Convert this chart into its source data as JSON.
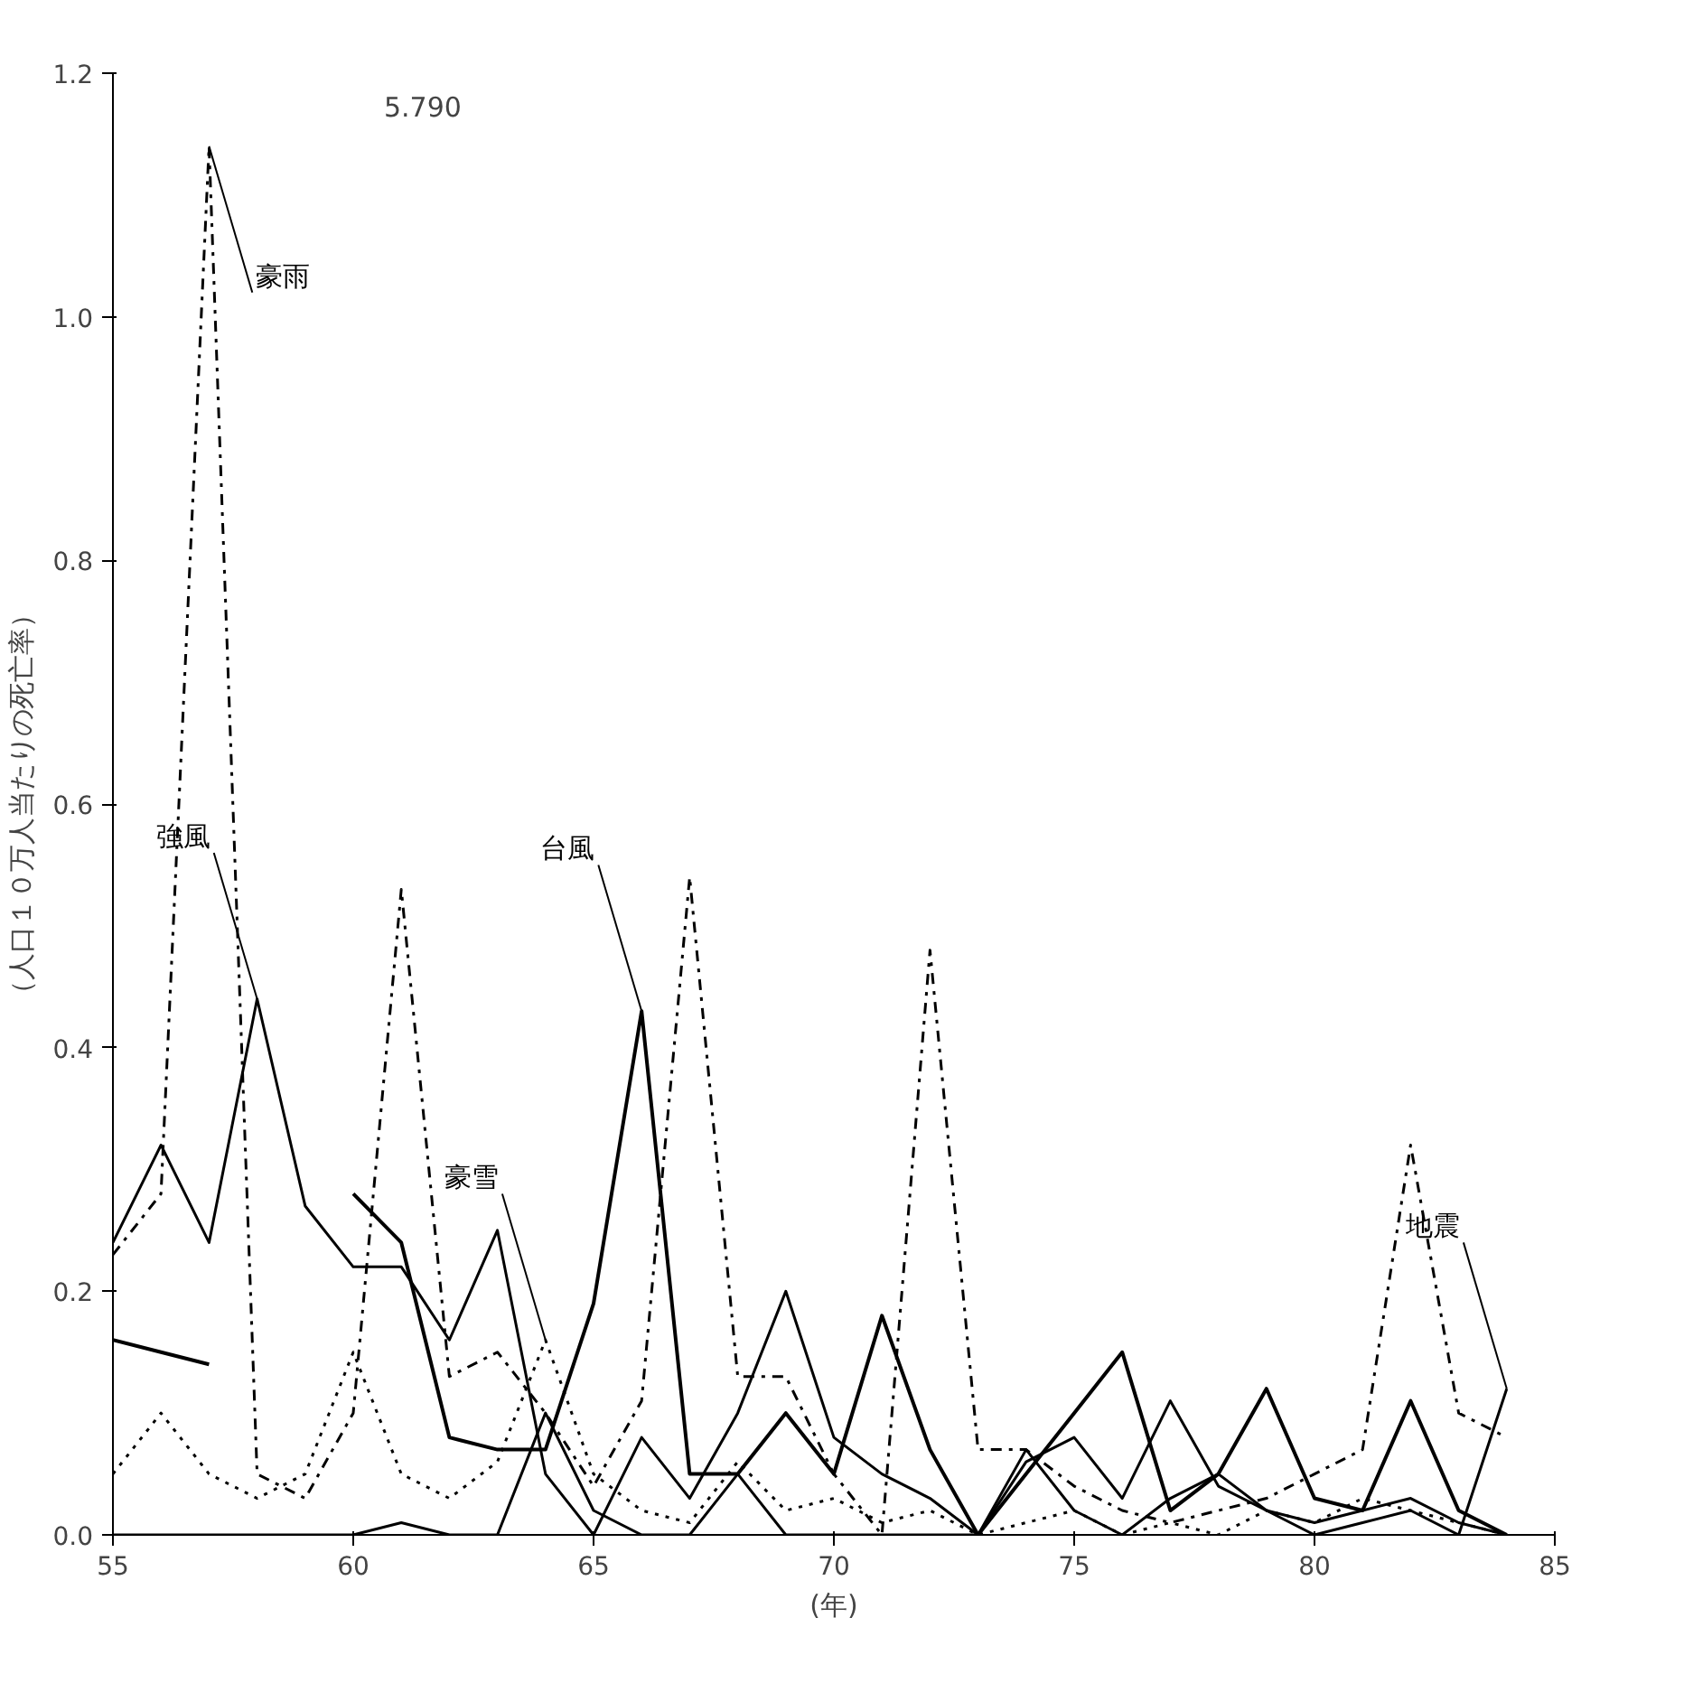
{
  "chart_data": {
    "type": "line",
    "xlabel": "(年)",
    "ylabel": "（人口１０万人当たりの死亡率）",
    "x": [
      55,
      56,
      57,
      58,
      59,
      60,
      61,
      62,
      63,
      64,
      65,
      66,
      67,
      68,
      69,
      70,
      71,
      72,
      73,
      74,
      75,
      76,
      77,
      78,
      79,
      80,
      81,
      82,
      83,
      84
    ],
    "series": [
      {
        "name": "台風",
        "color": "#000000",
        "line_style": "solid",
        "values": [
          0.16,
          0.15,
          0.14,
          null,
          null,
          0.28,
          0.24,
          0.08,
          0.07,
          0.07,
          0.19,
          0.43,
          0.05,
          0.05,
          0.1,
          0.05,
          0.18,
          0.07,
          0.0,
          0.05,
          0.1,
          0.15,
          0.02,
          0.05,
          0.12,
          0.03,
          0.02,
          0.11,
          0.02,
          0.0
        ]
      },
      {
        "name": "豪雨",
        "color": "#000000",
        "line_style": "dashed",
        "values": [
          0.23,
          0.28,
          1.14,
          0.05,
          0.03,
          0.1,
          0.53,
          0.13,
          0.15,
          0.1,
          0.04,
          0.11,
          0.54,
          0.13,
          0.13,
          0.05,
          0.0,
          0.48,
          0.07,
          0.07,
          0.04,
          0.02,
          0.01,
          0.02,
          0.03,
          0.05,
          0.07,
          0.32,
          0.1,
          0.08
        ]
      },
      {
        "name": "強風",
        "color": "#000000",
        "line_style": "solid",
        "values": [
          0.24,
          0.32,
          0.24,
          0.44,
          0.27,
          0.22,
          0.22,
          0.16,
          0.25,
          0.05,
          0.0,
          0.08,
          0.03,
          0.1,
          0.2,
          0.08,
          0.05,
          0.03,
          0.0,
          0.06,
          0.08,
          0.03,
          0.11,
          0.04,
          0.02,
          0.01,
          0.02,
          0.03,
          0.01,
          0.0
        ]
      },
      {
        "name": "豪雪",
        "color": "#000000",
        "line_style": "dotted",
        "values": [
          0.05,
          0.1,
          0.05,
          0.03,
          0.05,
          0.15,
          0.05,
          0.03,
          0.06,
          0.16,
          0.05,
          0.02,
          0.01,
          0.06,
          0.02,
          0.03,
          0.01,
          0.02,
          0.0,
          0.01,
          0.02,
          0.0,
          0.01,
          0.0,
          0.02,
          0.01,
          0.03,
          0.02,
          0.01,
          0.0
        ]
      },
      {
        "name": "地震",
        "color": "#000000",
        "line_style": "solid",
        "values": [
          0.0,
          0.0,
          0.0,
          0.0,
          0.0,
          0.0,
          0.01,
          0.0,
          0.0,
          0.1,
          0.02,
          0.0,
          0.0,
          0.05,
          0.0,
          0.0,
          0.0,
          0.0,
          0.0,
          0.07,
          0.02,
          0.0,
          0.03,
          0.05,
          0.02,
          0.0,
          0.01,
          0.02,
          0.0,
          0.12
        ]
      }
    ],
    "annotations": [
      "5.790"
    ],
    "xlim": [
      55,
      85
    ],
    "ylim": [
      0,
      1.2
    ],
    "xticks": [
      55,
      60,
      65,
      70,
      75,
      80,
      85
    ],
    "yticks": [
      {
        "value": 0,
        "label": "0.0"
      },
      {
        "value": 0.2,
        "label": "0.2"
      },
      {
        "value": 0.4,
        "label": "0.4"
      },
      {
        "value": 0.6,
        "label": "0.6"
      },
      {
        "value": 0.8,
        "label": "0.8"
      },
      {
        "value": 1.0,
        "label": "1.0"
      },
      {
        "value": 1.2,
        "label": "1.2"
      }
    ],
    "grid": false,
    "legend": false
  }
}
